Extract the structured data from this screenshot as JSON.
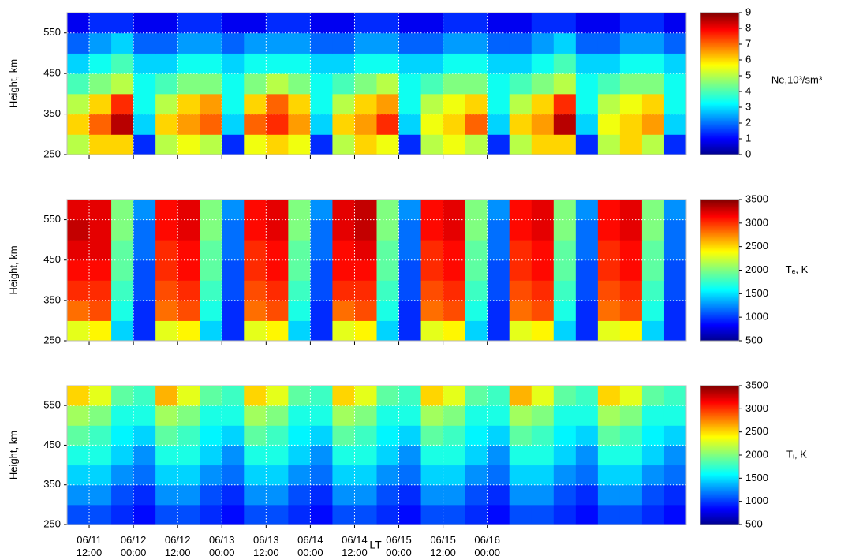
{
  "chart_data": [
    {
      "type": "heatmap",
      "ylabel": "Height, km",
      "colorbar_label": "Ne,10³/sm³",
      "x": [
        6,
        12,
        18,
        24,
        30,
        36,
        42,
        48,
        54,
        60,
        66,
        72,
        78,
        84,
        90,
        96,
        102,
        108,
        114,
        120,
        126,
        132,
        138,
        144,
        150,
        156,
        162,
        168,
        174
      ],
      "y": [
        250,
        300,
        350,
        400,
        450,
        500,
        550,
        600
      ],
      "z": [
        [
          5,
          6,
          6,
          1.5,
          5,
          5.5,
          5,
          1.5,
          5.5,
          6,
          5.5,
          1.5,
          5,
          6,
          5.5,
          1.5,
          5,
          5.5,
          5,
          1.5,
          5,
          6,
          6,
          1.5,
          5,
          6,
          5,
          1.5
        ],
        [
          6,
          7,
          8.5,
          3,
          6,
          6.5,
          7,
          3,
          7,
          7.5,
          6.5,
          3,
          6,
          6.5,
          7.5,
          3,
          5.5,
          6,
          7,
          3,
          6,
          6.5,
          8.5,
          3,
          5.5,
          6,
          6.5,
          3
        ],
        [
          5,
          6,
          7.5,
          3.5,
          5,
          6,
          6.5,
          3.5,
          6,
          7,
          6,
          3.5,
          5,
          6,
          6.5,
          3.5,
          5,
          5.5,
          6,
          3.5,
          5,
          6,
          7.5,
          3.5,
          5,
          5.5,
          6,
          3.5
        ],
        [
          4,
          4.5,
          5,
          3.5,
          4,
          4.5,
          4.5,
          3.5,
          4.5,
          5,
          4.5,
          3.5,
          4,
          4.5,
          5,
          3.5,
          4,
          4.5,
          4.5,
          3.5,
          4,
          4.5,
          5,
          3.5,
          4,
          4.5,
          4.5,
          3.5
        ],
        [
          3,
          3.5,
          4,
          3,
          3,
          3.5,
          3.5,
          3,
          3.5,
          3.5,
          3.5,
          3,
          3,
          3.5,
          3.5,
          3,
          3,
          3.5,
          3.5,
          3,
          3,
          3.5,
          4,
          3,
          3,
          3.5,
          3.5,
          3
        ],
        [
          2,
          2.5,
          3,
          2,
          2,
          2.5,
          2.5,
          2,
          2.5,
          2.5,
          2.5,
          2,
          2,
          2.5,
          2.5,
          2,
          2,
          2.5,
          2.5,
          2,
          2,
          2.5,
          3,
          2,
          2,
          2.5,
          2.5,
          2
        ],
        [
          1,
          1.5,
          1.5,
          1,
          1,
          1.5,
          1.5,
          1,
          1,
          1.5,
          1.5,
          1,
          1,
          1.5,
          1.5,
          1,
          1,
          1.5,
          1.5,
          1,
          1,
          1.5,
          1.5,
          1,
          1,
          1.5,
          1.5,
          1
        ]
      ],
      "zlim": [
        0,
        9
      ],
      "zticks": [
        0,
        1,
        2,
        3,
        4,
        5,
        6,
        7,
        8,
        9
      ],
      "ylim": [
        250,
        600
      ],
      "yticks": [
        250,
        350,
        450,
        550
      ],
      "xlim": [
        6,
        174
      ],
      "grid": true
    },
    {
      "type": "heatmap",
      "ylabel": "Height, km",
      "colorbar_label": "Tₑ, K",
      "x": [
        6,
        12,
        18,
        24,
        30,
        36,
        42,
        48,
        54,
        60,
        66,
        72,
        78,
        84,
        90,
        96,
        102,
        108,
        114,
        120,
        126,
        132,
        138,
        144,
        150,
        156,
        162,
        168,
        174
      ],
      "y": [
        250,
        300,
        350,
        400,
        450,
        500,
        550,
        600
      ],
      "z": [
        [
          2300,
          2400,
          1500,
          1000,
          2300,
          2400,
          1500,
          1000,
          2300,
          2400,
          1500,
          1000,
          2300,
          2400,
          1500,
          1000,
          2300,
          2400,
          1500,
          1000,
          2300,
          2400,
          1500,
          1000,
          2300,
          2400,
          1500,
          1000
        ],
        [
          2800,
          2900,
          1700,
          1000,
          2800,
          2900,
          1700,
          1000,
          2800,
          2900,
          1700,
          1000,
          2800,
          2900,
          1700,
          1000,
          2800,
          2900,
          1700,
          1000,
          2800,
          2900,
          1700,
          1000,
          2800,
          2900,
          1700,
          1000
        ],
        [
          3000,
          3000,
          1800,
          1100,
          2900,
          3000,
          1800,
          1100,
          2900,
          3000,
          1800,
          1100,
          3000,
          3000,
          1800,
          1100,
          2900,
          3000,
          1800,
          1100,
          2900,
          3000,
          1800,
          1100,
          2900,
          3000,
          1800,
          1100
        ],
        [
          3100,
          3100,
          1900,
          1100,
          3000,
          3100,
          1900,
          1100,
          3000,
          3100,
          1900,
          1100,
          3100,
          3100,
          1900,
          1100,
          3000,
          3100,
          1900,
          1100,
          3000,
          3100,
          1900,
          1100,
          3000,
          3100,
          1900,
          1100
        ],
        [
          3200,
          3200,
          1900,
          1200,
          3000,
          3100,
          1900,
          1200,
          3000,
          3100,
          1900,
          1200,
          3100,
          3200,
          1900,
          1200,
          3000,
          3100,
          1900,
          1200,
          3000,
          3100,
          1900,
          1200,
          3000,
          3100,
          1900,
          1200
        ],
        [
          3300,
          3200,
          2000,
          1200,
          3100,
          3200,
          2000,
          1200,
          3100,
          3200,
          2000,
          1200,
          3200,
          3300,
          2000,
          1200,
          3100,
          3200,
          2000,
          1200,
          3100,
          3200,
          2000,
          1200,
          3100,
          3200,
          2000,
          1200
        ],
        [
          3200,
          3200,
          2000,
          1300,
          3100,
          3200,
          2000,
          1300,
          3100,
          3200,
          2000,
          1300,
          3200,
          3300,
          2000,
          1300,
          3100,
          3200,
          2000,
          1300,
          3100,
          3200,
          2000,
          1300,
          3100,
          3200,
          2000,
          1300
        ]
      ],
      "zlim": [
        500,
        3500
      ],
      "zticks": [
        500,
        1000,
        1500,
        2000,
        2500,
        3000,
        3500
      ],
      "ylim": [
        250,
        600
      ],
      "yticks": [
        250,
        350,
        450,
        550
      ],
      "xlim": [
        6,
        174
      ],
      "grid": true
    },
    {
      "type": "heatmap",
      "ylabel": "Height, km",
      "colorbar_label": "Tᵢ, K",
      "xlabel": "LT",
      "x": [
        6,
        12,
        18,
        24,
        30,
        36,
        42,
        48,
        54,
        60,
        66,
        72,
        78,
        84,
        90,
        96,
        102,
        108,
        114,
        120,
        126,
        132,
        138,
        144,
        150,
        156,
        162,
        168,
        174
      ],
      "y": [
        250,
        300,
        350,
        400,
        450,
        500,
        550,
        600
      ],
      "z": [
        [
          1100,
          1100,
          1000,
          900,
          1100,
          1100,
          1000,
          900,
          1100,
          1100,
          1000,
          900,
          1100,
          1100,
          1000,
          900,
          1100,
          1100,
          1000,
          900,
          1100,
          1100,
          1000,
          900,
          1100,
          1100,
          1000,
          900
        ],
        [
          1300,
          1300,
          1100,
          1000,
          1300,
          1300,
          1100,
          1000,
          1300,
          1300,
          1100,
          1000,
          1300,
          1300,
          1100,
          1000,
          1300,
          1300,
          1100,
          1000,
          1300,
          1300,
          1100,
          1000,
          1300,
          1300,
          1100,
          1000
        ],
        [
          1500,
          1500,
          1300,
          1200,
          1500,
          1500,
          1300,
          1200,
          1500,
          1500,
          1300,
          1200,
          1500,
          1500,
          1300,
          1200,
          1500,
          1500,
          1300,
          1200,
          1500,
          1500,
          1300,
          1200,
          1500,
          1500,
          1300,
          1200
        ],
        [
          1700,
          1700,
          1500,
          1300,
          1700,
          1700,
          1500,
          1300,
          1700,
          1700,
          1500,
          1300,
          1700,
          1700,
          1500,
          1300,
          1700,
          1700,
          1500,
          1300,
          1700,
          1700,
          1500,
          1300,
          1700,
          1700,
          1500,
          1300
        ],
        [
          1900,
          1800,
          1600,
          1500,
          1900,
          1800,
          1600,
          1500,
          1900,
          1800,
          1600,
          1500,
          1900,
          1800,
          1600,
          1500,
          1900,
          1800,
          1600,
          1500,
          1900,
          1800,
          1600,
          1500,
          1900,
          1800,
          1600,
          1500
        ],
        [
          2100,
          2000,
          1700,
          1700,
          2100,
          2000,
          1700,
          1700,
          2100,
          2000,
          1700,
          1700,
          2100,
          2000,
          1700,
          1700,
          2100,
          2000,
          1700,
          1700,
          2100,
          2000,
          1700,
          1700,
          2100,
          2000,
          1700,
          1700
        ],
        [
          2500,
          2300,
          1900,
          1800,
          2600,
          2300,
          1900,
          1800,
          2500,
          2300,
          1900,
          1800,
          2500,
          2300,
          1900,
          1800,
          2500,
          2300,
          1900,
          1800,
          2600,
          2300,
          1900,
          1800,
          2500,
          2300,
          1900,
          1800
        ]
      ],
      "zlim": [
        500,
        3500
      ],
      "zticks": [
        500,
        1000,
        1500,
        2000,
        2500,
        3000,
        3500
      ],
      "ylim": [
        250,
        600
      ],
      "yticks": [
        250,
        350,
        450,
        550
      ],
      "xlim": [
        6,
        174
      ],
      "grid": true,
      "xticks": [
        {
          "value": 12,
          "label": "06/11\n12:00"
        },
        {
          "value": 24,
          "label": "06/12\n00:00"
        },
        {
          "value": 36,
          "label": "06/12\n12:00"
        },
        {
          "value": 48,
          "label": "06/13\n00:00"
        },
        {
          "value": 60,
          "label": "06/13\n12:00"
        },
        {
          "value": 72,
          "label": "06/14\n00:00"
        },
        {
          "value": 84,
          "label": "06/14\n12:00"
        },
        {
          "value": 96,
          "label": "06/15\n00:00"
        },
        {
          "value": 108,
          "label": "06/15\n12:00"
        },
        {
          "value": 120,
          "label": "06/16\n00:00"
        }
      ]
    }
  ]
}
